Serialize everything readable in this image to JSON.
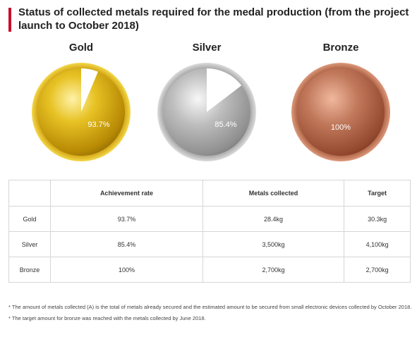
{
  "title": "Status of collected metals required for the medal production (from the project launch to October 2018)",
  "chart_data": {
    "type": "pie",
    "medals": [
      {
        "name": "Gold",
        "value": 93.7,
        "label": "93.7%",
        "color": "#d4a80f"
      },
      {
        "name": "Silver",
        "value": 85.4,
        "label": "85.4%",
        "color": "#a9a9a9"
      },
      {
        "name": "Bronze",
        "value": 100,
        "label": "100%",
        "color": "#b5694a"
      }
    ]
  },
  "table": {
    "headers": [
      "",
      "Achievement rate",
      "Metals collected",
      "Target"
    ],
    "rows": [
      [
        "Gold",
        "93.7%",
        "28.4kg",
        "30.3kg"
      ],
      [
        "Silver",
        "85.4%",
        "3,500kg",
        "4,100kg"
      ],
      [
        "Bronze",
        "100%",
        "2,700kg",
        "2,700kg"
      ]
    ]
  },
  "notes": [
    "* The amount of metals collected (A) is the total of metals already secured and the estimated amount to be secured from small electronic devices collected by October 2018.",
    "* The target amount for bronze was reached with the metals collected by June 2018."
  ]
}
